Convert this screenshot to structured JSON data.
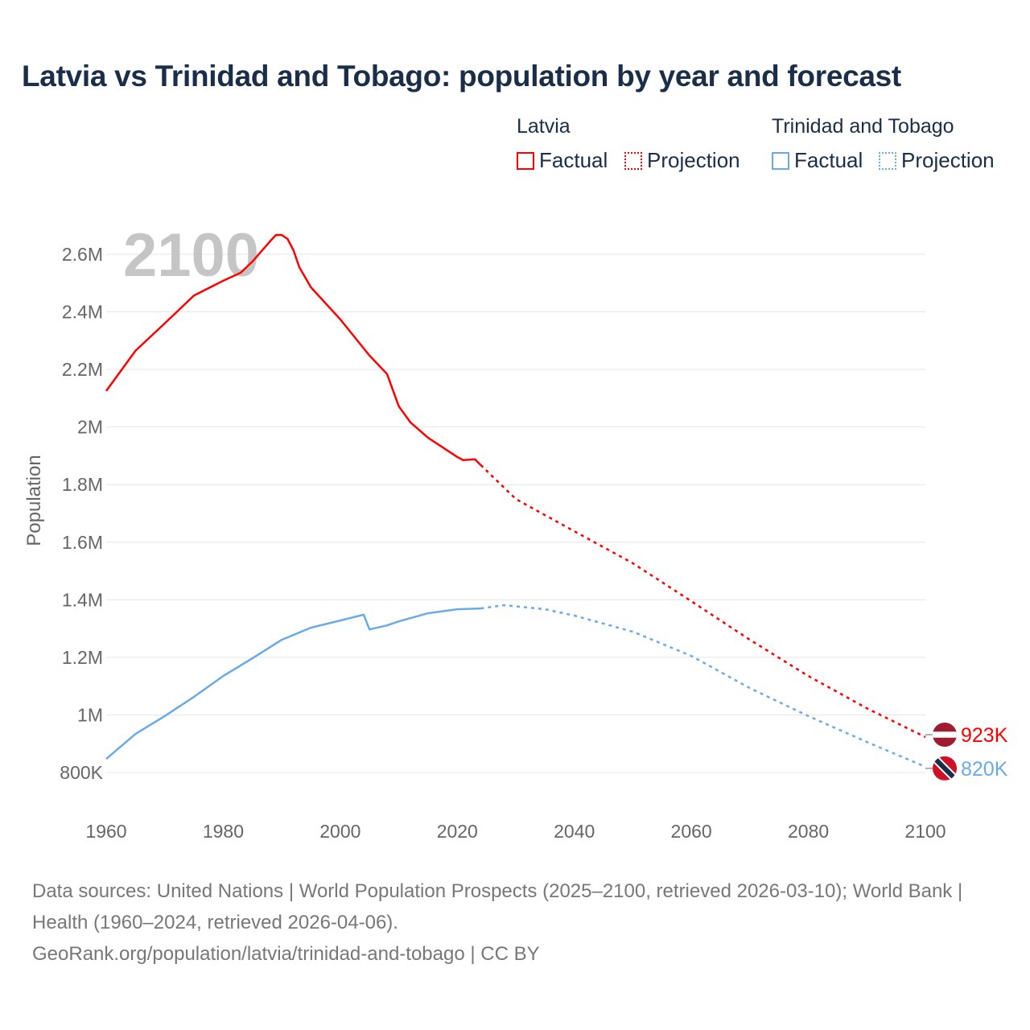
{
  "title": "Latvia vs Trinidad and Tobago: population by year and forecast",
  "legend": {
    "groups": [
      {
        "name": "Latvia",
        "factual": "Factual",
        "projection": "Projection",
        "color": "#ff0000"
      },
      {
        "name": "Trinidad and Tobago",
        "factual": "Factual",
        "projection": "Projection",
        "color": "#6aaae8"
      }
    ]
  },
  "watermark_year": "2100",
  "footer": {
    "sources": "Data sources: United Nations | World Population Prospects (2025–2100, retrieved 2026-03-10); World Bank | Health (1960–2024, retrieved 2026-04-06).",
    "credit": "GeoRank.org/population/latvia/trinidad-and-tobago | CC BY"
  },
  "chart_data": {
    "type": "line",
    "title": "Latvia vs Trinidad and Tobago: population by year and forecast",
    "xlabel": "",
    "ylabel": "Population",
    "xlim": [
      1960,
      2100
    ],
    "ylim": [
      800000,
      2600000
    ],
    "xticks": [
      1960,
      1980,
      2000,
      2020,
      2040,
      2060,
      2080,
      2100
    ],
    "xtick_labels": [
      "1960",
      "1980",
      "2000",
      "2020",
      "2040",
      "2060",
      "2080",
      "2100"
    ],
    "yticks": [
      800000,
      1000000,
      1200000,
      1400000,
      1600000,
      1800000,
      2000000,
      2200000,
      2400000,
      2600000
    ],
    "ytick_labels": [
      "800K",
      "1M",
      "1.2M",
      "1.4M",
      "1.6M",
      "1.8M",
      "2M",
      "2.2M",
      "2.4M",
      "2.6M"
    ],
    "grid": true,
    "legend_position": "top-right",
    "series": [
      {
        "name": "Latvia",
        "color": "#ff0000",
        "end_label": "923K",
        "factual": {
          "x": [
            1960,
            1965,
            1970,
            1975,
            1980,
            1983,
            1985,
            1988,
            1989,
            1990,
            1991,
            1992,
            1993,
            1995,
            2000,
            2005,
            2008,
            2010,
            2012,
            2015,
            2020,
            2021,
            2023,
            2024
          ],
          "y": [
            2125000,
            2265000,
            2360000,
            2457000,
            2508000,
            2536000,
            2575000,
            2645000,
            2667000,
            2667000,
            2653000,
            2614000,
            2555000,
            2485000,
            2374000,
            2248000,
            2184000,
            2072000,
            2016000,
            1963000,
            1896000,
            1885000,
            1888000,
            1868000
          ]
        },
        "projection": {
          "x": [
            2024,
            2030,
            2040,
            2050,
            2060,
            2070,
            2080,
            2090,
            2100
          ],
          "y": [
            1868000,
            1750000,
            1638000,
            1527000,
            1395000,
            1261000,
            1135000,
            1023000,
            923000
          ]
        }
      },
      {
        "name": "Trinidad and Tobago",
        "color": "#6aaae8",
        "end_label": "820K",
        "factual": {
          "x": [
            1960,
            1965,
            1970,
            1975,
            1980,
            1985,
            1990,
            1995,
            2000,
            2004,
            2005,
            2008,
            2010,
            2015,
            2020,
            2024
          ],
          "y": [
            847000,
            934000,
            996000,
            1063000,
            1135000,
            1197000,
            1261000,
            1303000,
            1328000,
            1348000,
            1297000,
            1311000,
            1325000,
            1353000,
            1367000,
            1370000
          ]
        },
        "projection": {
          "x": [
            2024,
            2028,
            2035,
            2040,
            2050,
            2060,
            2070,
            2080,
            2090,
            2100
          ],
          "y": [
            1370000,
            1381000,
            1367000,
            1345000,
            1289000,
            1205000,
            1093000,
            996000,
            906000,
            820000
          ]
        }
      }
    ]
  }
}
